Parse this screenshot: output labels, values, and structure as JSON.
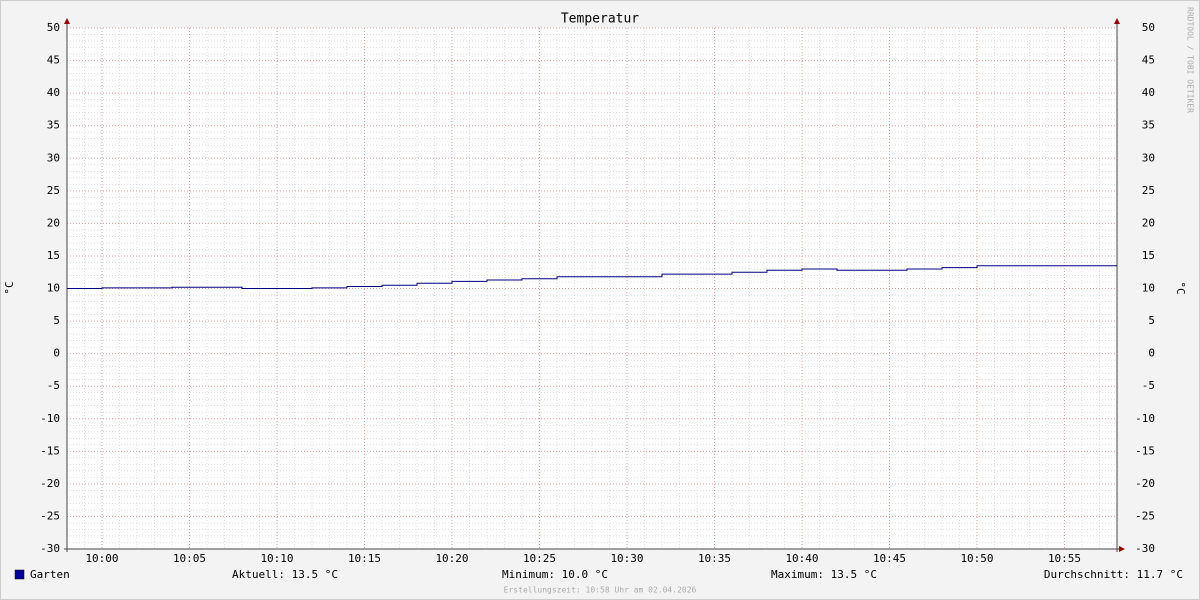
{
  "chart_data": {
    "type": "step",
    "title": "Temperatur",
    "ylabel": "°C",
    "watermark": "RRDTOOL / TOBI OETIKER",
    "footer": "Erstellungszeit: 10:58 Uhr am 02.04.2026",
    "xlim": [
      "09:58",
      "10:58"
    ],
    "xticks": [
      "10:00",
      "10:05",
      "10:10",
      "10:15",
      "10:20",
      "10:25",
      "10:30",
      "10:35",
      "10:40",
      "10:45",
      "10:50",
      "10:55"
    ],
    "ylim": [
      -30,
      50
    ],
    "yticks": [
      -30,
      -25,
      -20,
      -15,
      -10,
      -5,
      0,
      5,
      10,
      15,
      20,
      25,
      30,
      35,
      40,
      45,
      50
    ],
    "grid": true,
    "minor_grid": true,
    "series": [
      {
        "name": "Garten",
        "color": "#000080",
        "x": [
          "09:58",
          "10:00",
          "10:04",
          "10:08",
          "10:12",
          "10:14",
          "10:16",
          "10:18",
          "10:20",
          "10:22",
          "10:24",
          "10:26",
          "10:32",
          "10:36",
          "10:38",
          "10:40",
          "10:42",
          "10:46",
          "10:48",
          "10:50"
        ],
        "values": [
          10.0,
          10.1,
          10.2,
          10.0,
          10.1,
          10.3,
          10.5,
          10.8,
          11.1,
          11.3,
          11.5,
          11.8,
          12.2,
          12.5,
          12.8,
          13.0,
          12.8,
          13.0,
          13.2,
          13.5
        ]
      }
    ],
    "legend_stats": [
      "Aktuell: 13.5 °C",
      "Minimum: 10.0 °C",
      "Maximum: 13.5 °C",
      "Durchschnitt: 11.7 °C"
    ]
  }
}
